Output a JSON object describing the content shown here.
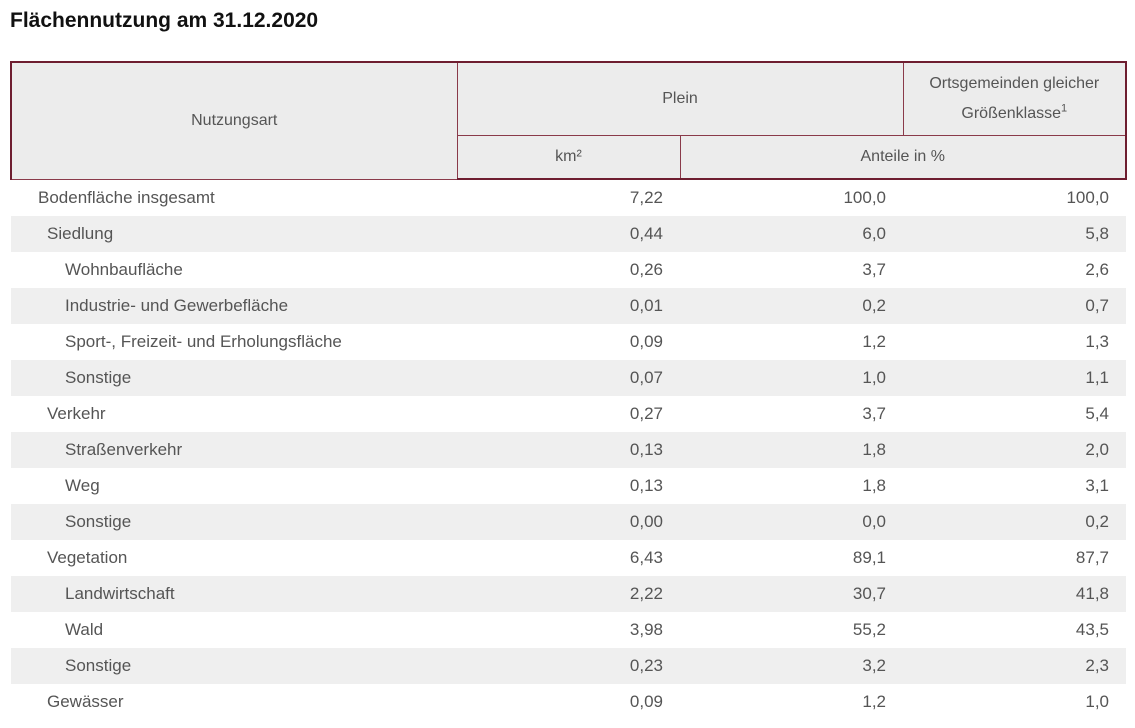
{
  "title": "Flächennutzung am 31.12.2020",
  "header": {
    "col_label": "Nutzungsart",
    "group_label": "Plein",
    "compare_label": "Ortsgemeinden gleicher Größenklasse",
    "compare_footnote": "1",
    "unit_km": "km²",
    "unit_share": "Anteile in %"
  },
  "rows": [
    {
      "label": "Bodenfläche insgesamt",
      "level": 0,
      "km2": "7,22",
      "share": "100,0",
      "compare": "100,0"
    },
    {
      "label": "Siedlung",
      "level": 1,
      "km2": "0,44",
      "share": "6,0",
      "compare": "5,8"
    },
    {
      "label": "Wohnbaufläche",
      "level": 2,
      "km2": "0,26",
      "share": "3,7",
      "compare": "2,6"
    },
    {
      "label": "Industrie- und Gewerbefläche",
      "level": 2,
      "km2": "0,01",
      "share": "0,2",
      "compare": "0,7"
    },
    {
      "label": "Sport-, Freizeit- und Erholungsfläche",
      "level": 2,
      "km2": "0,09",
      "share": "1,2",
      "compare": "1,3"
    },
    {
      "label": "Sonstige",
      "level": 2,
      "km2": "0,07",
      "share": "1,0",
      "compare": "1,1"
    },
    {
      "label": "Verkehr",
      "level": 1,
      "km2": "0,27",
      "share": "3,7",
      "compare": "5,4"
    },
    {
      "label": "Straßenverkehr",
      "level": 2,
      "km2": "0,13",
      "share": "1,8",
      "compare": "2,0"
    },
    {
      "label": "Weg",
      "level": 2,
      "km2": "0,13",
      "share": "1,8",
      "compare": "3,1"
    },
    {
      "label": "Sonstige",
      "level": 2,
      "km2": "0,00",
      "share": "0,0",
      "compare": "0,2"
    },
    {
      "label": "Vegetation",
      "level": 1,
      "km2": "6,43",
      "share": "89,1",
      "compare": "87,7"
    },
    {
      "label": "Landwirtschaft",
      "level": 2,
      "km2": "2,22",
      "share": "30,7",
      "compare": "41,8"
    },
    {
      "label": "Wald",
      "level": 2,
      "km2": "3,98",
      "share": "55,2",
      "compare": "43,5"
    },
    {
      "label": "Sonstige",
      "level": 2,
      "km2": "0,23",
      "share": "3,2",
      "compare": "2,3"
    },
    {
      "label": "Gewässer",
      "level": 1,
      "km2": "0,09",
      "share": "1,2",
      "compare": "1,0"
    }
  ]
}
